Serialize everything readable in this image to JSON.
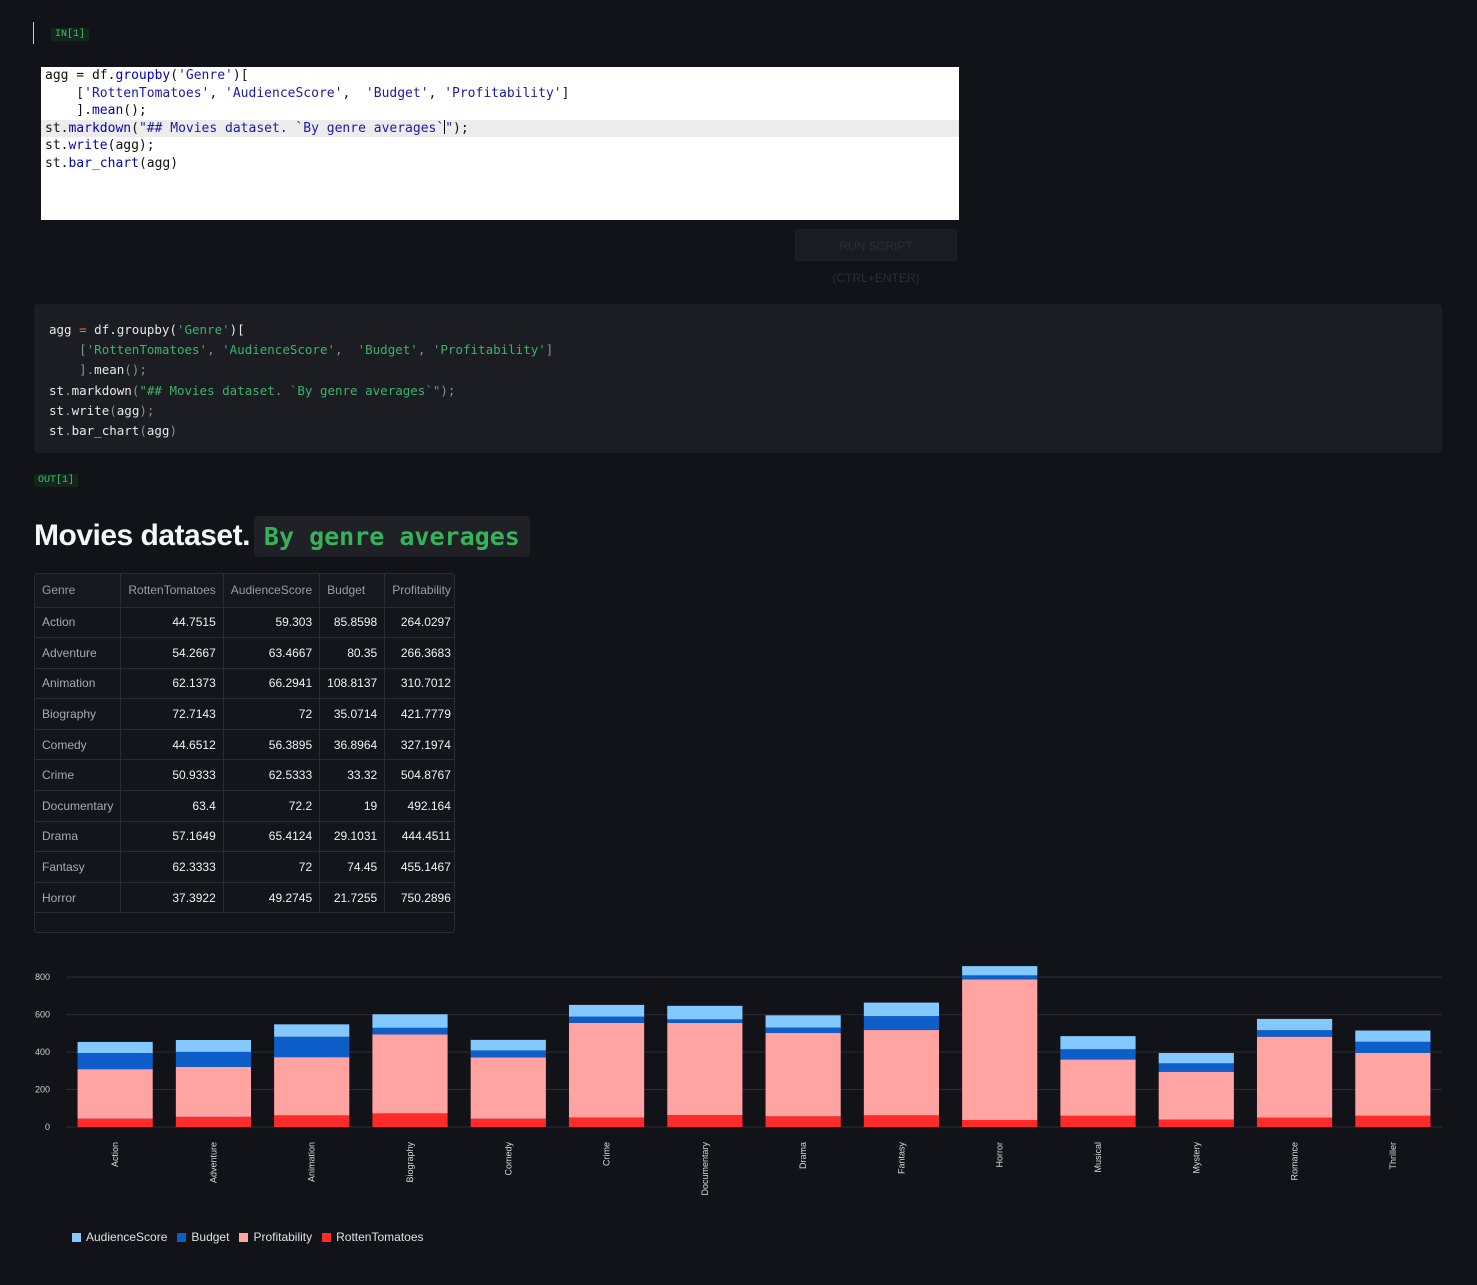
{
  "cells": {
    "in_tag": "IN[1]",
    "out_tag": "OUT[1]",
    "run_button": "RUN SCRIPT (CTRL+ENTER)"
  },
  "editor": {
    "lines": [
      "agg = df.groupby('Genre')[",
      "    ['RottenTomatoes', 'AudienceScore',  'Budget', 'Profitability']",
      "    ].mean();",
      "st.markdown(\"## Movies dataset. `By genre averages`\");",
      "st.write(agg);",
      "st.bar_chart(agg)"
    ]
  },
  "code_block": {
    "lines": [
      "agg = df.groupby('Genre')[",
      "    ['RottenTomatoes', 'AudienceScore',  'Budget', 'Profitability']",
      "    ].mean();",
      "st.markdown(\"## Movies dataset. `By genre averages`\");",
      "st.write(agg);",
      "st.bar_chart(agg)"
    ]
  },
  "heading": {
    "text": "Movies dataset.",
    "code": "By genre averages"
  },
  "table": {
    "columns": [
      "Genre",
      "RottenTomatoes",
      "AudienceScore",
      "Budget",
      "Profitability"
    ],
    "rows": [
      [
        "Action",
        "44.7515",
        "59.303",
        "85.8598",
        "264.0297"
      ],
      [
        "Adventure",
        "54.2667",
        "63.4667",
        "80.35",
        "266.3683"
      ],
      [
        "Animation",
        "62.1373",
        "66.2941",
        "108.8137",
        "310.7012"
      ],
      [
        "Biography",
        "72.7143",
        "72",
        "35.0714",
        "421.7779"
      ],
      [
        "Comedy",
        "44.6512",
        "56.3895",
        "36.8964",
        "327.1974"
      ],
      [
        "Crime",
        "50.9333",
        "62.5333",
        "33.32",
        "504.8767"
      ],
      [
        "Documentary",
        "63.4",
        "72.2",
        "19",
        "492.164"
      ],
      [
        "Drama",
        "57.1649",
        "65.4124",
        "29.1031",
        "444.4511"
      ],
      [
        "Fantasy",
        "62.3333",
        "72",
        "74.45",
        "455.1467"
      ],
      [
        "Horror",
        "37.3922",
        "49.2745",
        "21.7255",
        "750.2896"
      ]
    ]
  },
  "chart_data": {
    "type": "bar",
    "stacked": true,
    "categories": [
      "Action",
      "Adventure",
      "Animation",
      "Biography",
      "Comedy",
      "Crime",
      "Documentary",
      "Drama",
      "Fantasy",
      "Horror",
      "Musical",
      "Mystery",
      "Romance",
      "Thriller"
    ],
    "series": [
      {
        "name": "RottenTomatoes",
        "color": "#ff2b2b",
        "values": [
          44.75,
          54.27,
          62.14,
          72.71,
          44.65,
          50.93,
          63.4,
          57.16,
          62.33,
          37.39,
          60,
          40,
          50,
          60
        ]
      },
      {
        "name": "Profitability",
        "color": "#ffa3a3",
        "values": [
          264.03,
          266.37,
          310.7,
          421.78,
          327.2,
          504.88,
          492.16,
          444.45,
          455.15,
          750.29,
          300,
          255,
          432,
          335
        ]
      },
      {
        "name": "Budget",
        "color": "#0d5ec9",
        "values": [
          85.86,
          80.35,
          108.81,
          35.07,
          36.9,
          33.32,
          19,
          29.1,
          74.45,
          21.73,
          55,
          45,
          35,
          60
        ]
      },
      {
        "name": "AudienceScore",
        "color": "#83c9ff",
        "values": [
          59.3,
          63.47,
          66.29,
          72,
          56.39,
          62.53,
          72.2,
          65.41,
          72,
          49.27,
          70,
          55,
          60,
          60
        ]
      }
    ],
    "legend_order": [
      "AudienceScore",
      "Budget",
      "Profitability",
      "RottenTomatoes"
    ],
    "y_ticks": [
      0,
      200,
      400,
      600,
      800
    ],
    "ylim": [
      0,
      870
    ],
    "legend": "bottom-left"
  }
}
